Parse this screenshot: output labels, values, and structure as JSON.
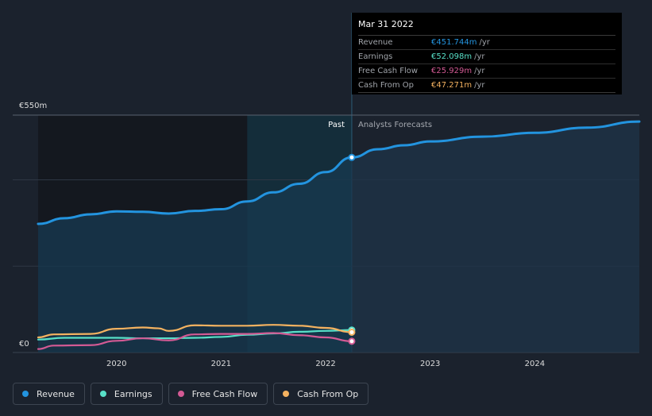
{
  "chart_data": {
    "type": "line",
    "y_axis_labels": {
      "top": "€550m",
      "bottom": "€0"
    },
    "ylim": [
      0,
      550
    ],
    "x_ticks": [
      2020,
      2021,
      2022,
      2023,
      2024
    ],
    "xlim": [
      2019.25,
      2025.0
    ],
    "divider_x": 2022.25,
    "past_label": "Past",
    "forecast_label": "Analysts Forecasts",
    "series": [
      {
        "name": "Revenue",
        "color": "#2394df",
        "x": [
          2019.25,
          2019.5,
          2019.75,
          2020.0,
          2020.25,
          2020.5,
          2020.75,
          2021.0,
          2021.25,
          2021.5,
          2021.75,
          2022.0,
          2022.25
        ],
        "y": [
          298,
          311,
          320,
          327,
          326,
          322,
          328,
          332,
          350,
          371,
          391,
          418,
          452
        ]
      },
      {
        "name": "Revenue Forecast",
        "color": "#2394df",
        "forecast": true,
        "x": [
          2022.25,
          2022.5,
          2022.75,
          2023.0,
          2023.5,
          2024.0,
          2024.5,
          2025.0
        ],
        "y": [
          452,
          471,
          480,
          489,
          500,
          509,
          521,
          535
        ]
      },
      {
        "name": "Earnings",
        "color": "#58e0c8",
        "x": [
          2019.25,
          2019.5,
          2019.75,
          2020.0,
          2020.25,
          2020.5,
          2020.75,
          2021.0,
          2021.25,
          2021.5,
          2021.75,
          2022.0,
          2022.25
        ],
        "y": [
          30,
          34,
          34,
          34,
          33,
          33,
          34,
          36,
          41,
          44,
          48,
          50,
          52
        ]
      },
      {
        "name": "Free Cash Flow",
        "color": "#d35a94",
        "x": [
          2019.25,
          2019.4,
          2019.75,
          2020.0,
          2020.25,
          2020.5,
          2020.75,
          2021.0,
          2021.25,
          2021.5,
          2021.75,
          2022.0,
          2022.25
        ],
        "y": [
          8,
          16,
          17,
          27,
          33,
          28,
          42,
          43,
          43,
          45,
          40,
          35,
          26
        ]
      },
      {
        "name": "Cash From Op",
        "color": "#f4b260",
        "x": [
          2019.25,
          2019.4,
          2019.75,
          2020.0,
          2020.25,
          2020.4,
          2020.5,
          2020.75,
          2021.0,
          2021.25,
          2021.5,
          2021.75,
          2022.0,
          2022.25
        ],
        "y": [
          35,
          42,
          43,
          55,
          58,
          56,
          50,
          63,
          62,
          62,
          64,
          62,
          57,
          47
        ]
      }
    ]
  },
  "tooltip": {
    "date": "Mar 31 2022",
    "rows": [
      {
        "label": "Revenue",
        "value": "€451.744m",
        "unit": "/yr",
        "color": "#2394df"
      },
      {
        "label": "Earnings",
        "value": "€52.098m",
        "unit": "/yr",
        "color": "#58e0c8"
      },
      {
        "label": "Free Cash Flow",
        "value": "€25.929m",
        "unit": "/yr",
        "color": "#d35a94"
      },
      {
        "label": "Cash From Op",
        "value": "€47.271m",
        "unit": "/yr",
        "color": "#f4b260"
      }
    ]
  },
  "legend": [
    {
      "label": "Revenue",
      "color": "#2394df"
    },
    {
      "label": "Earnings",
      "color": "#58e0c8"
    },
    {
      "label": "Free Cash Flow",
      "color": "#d35a94"
    },
    {
      "label": "Cash From Op",
      "color": "#f4b260"
    }
  ]
}
